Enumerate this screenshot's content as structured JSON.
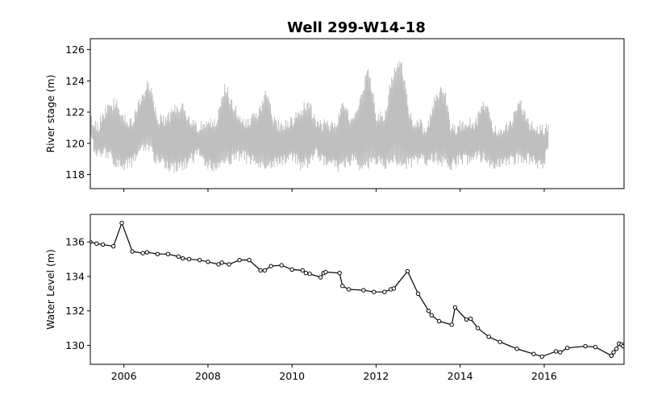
{
  "chart_data": [
    {
      "type": "line",
      "title": "Well 299-W14-18",
      "xlabel": "",
      "ylabel": "River stage (m)",
      "xlim": [
        2005.2,
        2017.9
      ],
      "ylim": [
        117.1,
        126.7
      ],
      "yticks": [
        118,
        120,
        122,
        124,
        126
      ],
      "xticks": [
        2006,
        2008,
        2010,
        2012,
        2014,
        2016
      ],
      "x_tick_labels_shown": false,
      "color": "#bfbfbf",
      "grid": false,
      "envelope": {
        "x": [
          2005.2,
          2005.4,
          2005.6,
          2005.8,
          2006.0,
          2006.2,
          2006.4,
          2006.6,
          2006.8,
          2007.0,
          2007.2,
          2007.4,
          2007.6,
          2007.8,
          2008.0,
          2008.2,
          2008.4,
          2008.6,
          2008.8,
          2009.0,
          2009.2,
          2009.4,
          2009.6,
          2009.8,
          2010.0,
          2010.2,
          2010.4,
          2010.6,
          2010.8,
          2011.0,
          2011.2,
          2011.4,
          2011.6,
          2011.8,
          2012.0,
          2012.2,
          2012.4,
          2012.6,
          2012.8,
          2013.0,
          2013.2,
          2013.4,
          2013.6,
          2013.8,
          2014.0,
          2014.2,
          2014.4,
          2014.6,
          2014.8,
          2015.0,
          2015.2,
          2015.4,
          2015.6,
          2015.8,
          2016.0,
          2016.1
        ],
        "high": [
          121.8,
          121.5,
          122.6,
          123.0,
          121.9,
          121.8,
          123.2,
          124.2,
          122.0,
          121.8,
          122.5,
          122.6,
          121.6,
          121.4,
          121.6,
          121.8,
          124.1,
          122.8,
          121.6,
          121.8,
          122.4,
          123.6,
          121.6,
          121.5,
          121.8,
          122.5,
          123.0,
          121.5,
          121.6,
          121.5,
          122.7,
          121.8,
          122.7,
          125.3,
          122.2,
          122.2,
          124.8,
          125.6,
          122.0,
          121.7,
          121.2,
          123.2,
          124.0,
          121.3,
          121.5,
          121.6,
          121.8,
          123.1,
          121.3,
          121.3,
          121.6,
          123.1,
          121.7,
          121.3,
          121.3,
          121.4
        ],
        "low": [
          119.8,
          118.8,
          119.0,
          118.3,
          118.2,
          118.4,
          119.2,
          119.3,
          118.4,
          118.2,
          118.1,
          118.2,
          118.6,
          119.0,
          118.3,
          118.2,
          118.4,
          118.6,
          118.9,
          118.5,
          118.4,
          118.2,
          118.3,
          118.5,
          118.8,
          118.2,
          118.4,
          119.0,
          118.4,
          118.2,
          118.1,
          118.6,
          118.2,
          118.3,
          118.5,
          118.2,
          118.6,
          118.2,
          118.3,
          118.6,
          118.4,
          118.6,
          118.4,
          118.2,
          118.6,
          118.5,
          118.8,
          118.6,
          118.3,
          118.5,
          118.4,
          118.6,
          118.7,
          118.3,
          118.4,
          119.5
        ]
      }
    },
    {
      "type": "line",
      "title": "",
      "xlabel": "",
      "ylabel": "Water Level (m)",
      "xlim": [
        2005.2,
        2017.9
      ],
      "ylim": [
        128.9,
        137.6
      ],
      "yticks": [
        130,
        132,
        134,
        136
      ],
      "xticks": [
        2006,
        2008,
        2010,
        2012,
        2014,
        2016
      ],
      "x_tick_labels": [
        "2006",
        "2008",
        "2010",
        "2012",
        "2014",
        "2016"
      ],
      "color": "#000000",
      "markers": true,
      "grid": false,
      "x": [
        2005.2,
        2005.35,
        2005.5,
        2005.75,
        2005.95,
        2006.2,
        2006.45,
        2006.55,
        2006.8,
        2007.05,
        2007.3,
        2007.4,
        2007.55,
        2007.8,
        2008.0,
        2008.25,
        2008.33,
        2008.5,
        2008.75,
        2008.98,
        2009.25,
        2009.35,
        2009.5,
        2009.75,
        2010.0,
        2010.25,
        2010.33,
        2010.42,
        2010.68,
        2010.75,
        2010.8,
        2011.13,
        2011.2,
        2011.35,
        2011.7,
        2011.95,
        2012.2,
        2012.35,
        2012.42,
        2012.75,
        2013.0,
        2013.25,
        2013.32,
        2013.5,
        2013.8,
        2013.88,
        2014.15,
        2014.25,
        2014.42,
        2014.68,
        2014.95,
        2015.35,
        2015.75,
        2015.95,
        2016.28,
        2016.38,
        2016.55,
        2016.98,
        2017.22,
        2017.6,
        2017.65,
        2017.72,
        2017.78,
        2017.84,
        2017.88,
        2017.94,
        2017.99,
        2018.04,
        2018.1,
        2018.15
      ],
      "y": [
        136.0,
        135.9,
        135.85,
        135.75,
        137.1,
        135.45,
        135.35,
        135.4,
        135.3,
        135.3,
        135.15,
        135.05,
        135.0,
        134.95,
        134.85,
        134.7,
        134.8,
        134.7,
        134.95,
        134.95,
        134.35,
        134.35,
        134.6,
        134.65,
        134.4,
        134.35,
        134.2,
        134.15,
        133.95,
        134.2,
        134.25,
        134.2,
        133.45,
        133.25,
        133.2,
        133.1,
        133.1,
        133.25,
        133.3,
        134.3,
        133.0,
        132.0,
        131.75,
        131.4,
        131.2,
        132.2,
        131.5,
        131.55,
        131.0,
        130.5,
        130.2,
        129.8,
        129.5,
        129.35,
        129.65,
        129.6,
        129.85,
        129.95,
        129.9,
        129.4,
        129.6,
        129.8,
        130.1,
        130.05,
        129.95,
        130.2,
        129.75,
        130.0,
        129.85,
        129.45
      ]
    }
  ]
}
